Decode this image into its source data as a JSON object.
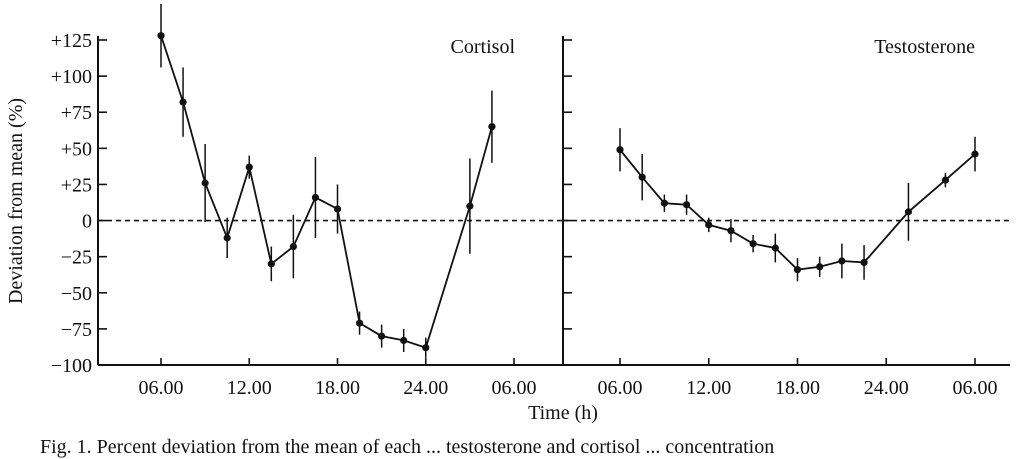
{
  "figure": {
    "caption": "Fig. 1. Percent deviation from the mean of each ... testosterone and cortisol ... concentration",
    "xlabel": "Time (h)",
    "ylabel": "Deviation from mean (%)"
  },
  "chart_data": [
    {
      "type": "line",
      "title": "Cortisol",
      "xlabel": "Time (h)",
      "ylabel": "Deviation from mean (%)",
      "x_unit": "hours from 06.00",
      "xlim": [
        -3.5,
        26.5
      ],
      "ylim": [
        -100,
        125
      ],
      "y_ticks": [
        125,
        100,
        75,
        50,
        25,
        0,
        -25,
        -50,
        -75,
        -100
      ],
      "y_tick_labels": [
        "+125",
        "+100",
        "+75",
        "+50",
        "+25",
        "0",
        "−25",
        "−50",
        "−75",
        "−100"
      ],
      "x_ticks": [
        0,
        6,
        12,
        18,
        24
      ],
      "x_tick_labels": [
        "06.00",
        "12.00",
        "18.00",
        "24.00",
        "06.00"
      ],
      "zero_line": "dashed",
      "series": [
        {
          "name": "Cortisol",
          "x": [
            0,
            1.5,
            3,
            4.5,
            6,
            7.5,
            9,
            10.5,
            12,
            13.5,
            15,
            16.5,
            18,
            21,
            22.5,
            24
          ],
          "y": [
            128,
            82,
            26,
            -12,
            37,
            -30,
            -18,
            16,
            8,
            -71,
            -80,
            -83,
            -88,
            10,
            65,
            null
          ],
          "error": [
            22,
            24,
            27,
            14,
            8,
            12,
            22,
            28,
            17,
            8,
            8,
            8,
            7,
            33,
            25,
            null
          ]
        }
      ]
    },
    {
      "type": "line",
      "title": "Testosterone",
      "xlabel": "Time (h)",
      "ylabel": "",
      "x_unit": "hours from 06.00",
      "xlim": [
        -3.5,
        26.5
      ],
      "ylim": [
        -100,
        125
      ],
      "x_ticks": [
        0,
        6,
        12,
        18,
        24
      ],
      "x_tick_labels": [
        "06.00",
        "12.00",
        "18.00",
        "24.00",
        "06.00"
      ],
      "zero_line": "dashed",
      "series": [
        {
          "name": "Testosterone",
          "x": [
            0,
            1.5,
            3,
            4.5,
            6,
            7.5,
            9,
            10.5,
            12,
            13.5,
            15,
            16.5,
            19.5,
            22,
            24
          ],
          "y": [
            49,
            30,
            12,
            11,
            -3,
            -7,
            -16,
            -19,
            -34,
            -32,
            -28,
            -29,
            6,
            28,
            46
          ],
          "error": [
            15,
            16,
            6,
            7,
            5,
            8,
            6,
            10,
            8,
            7,
            12,
            12,
            20,
            5,
            12
          ]
        }
      ]
    }
  ]
}
